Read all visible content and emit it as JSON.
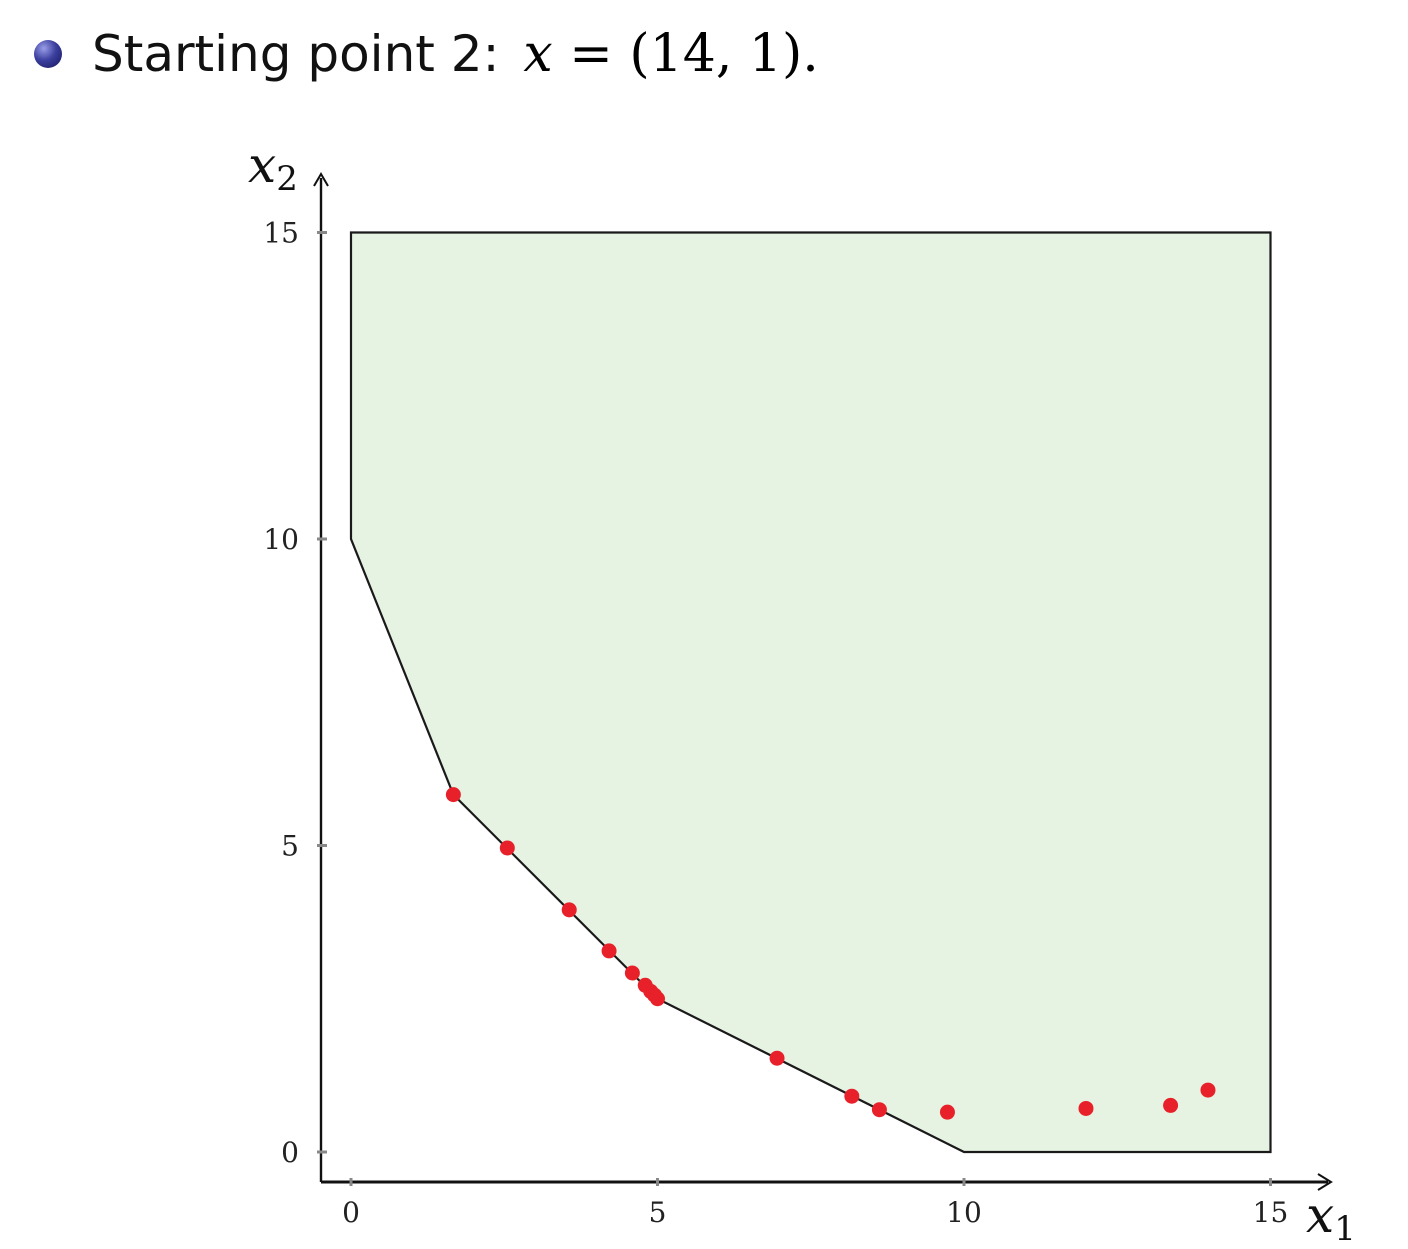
{
  "heading": {
    "text": "Starting point 2:",
    "math_var": "x",
    "math_rest": " = (14, 1)."
  },
  "chart_data": {
    "type": "scatter",
    "title": "",
    "xlabel": "x1",
    "ylabel": "x2",
    "xlim": [
      -1,
      16
    ],
    "ylim": [
      -1,
      16
    ],
    "xticks": [
      0,
      5,
      10,
      15
    ],
    "yticks": [
      0,
      5,
      10,
      15
    ],
    "region_polygon": [
      [
        0,
        15
      ],
      [
        15,
        15
      ],
      [
        15,
        0
      ],
      [
        10,
        0
      ],
      [
        5,
        2.5
      ],
      [
        1.67,
        5.83
      ],
      [
        0,
        10
      ]
    ],
    "points": [
      {
        "x": 1.67,
        "y": 5.83
      },
      {
        "x": 2.55,
        "y": 4.96
      },
      {
        "x": 3.56,
        "y": 3.95
      },
      {
        "x": 4.21,
        "y": 3.28
      },
      {
        "x": 4.59,
        "y": 2.92
      },
      {
        "x": 4.8,
        "y": 2.72
      },
      {
        "x": 4.89,
        "y": 2.62
      },
      {
        "x": 4.95,
        "y": 2.56
      },
      {
        "x": 5.0,
        "y": 2.5
      },
      {
        "x": 6.95,
        "y": 1.53
      },
      {
        "x": 8.17,
        "y": 0.91
      },
      {
        "x": 8.62,
        "y": 0.69
      },
      {
        "x": 9.73,
        "y": 0.65
      },
      {
        "x": 11.99,
        "y": 0.71
      },
      {
        "x": 13.37,
        "y": 0.76
      },
      {
        "x": 13.98,
        "y": 1.01
      }
    ],
    "colors": {
      "region_fill": "#e6f3e2",
      "points": "#e8202a",
      "lines": "#1a1a1a"
    }
  }
}
